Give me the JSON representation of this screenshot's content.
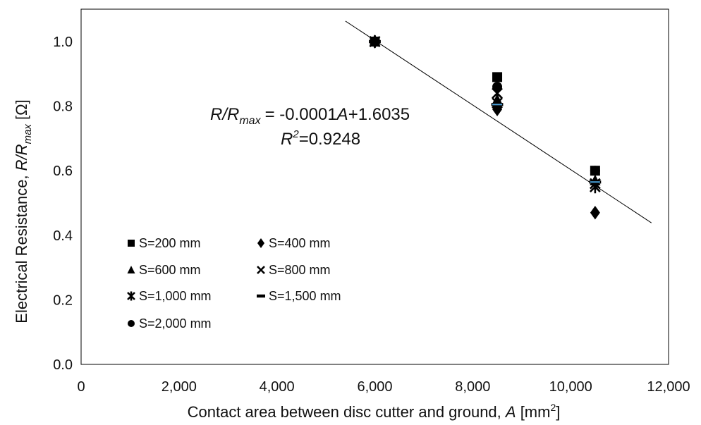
{
  "chart_data": {
    "type": "scatter",
    "xlabel_main": "Contact area between disc cutter and ground, ",
    "xlabel_var": "A",
    "xlabel_unit_open": " [mm",
    "xlabel_unit_sup": "2",
    "xlabel_unit_close": "]",
    "ylabel_main": "Electrical Resistance, ",
    "ylabel_var": "R/R",
    "ylabel_sub": "max",
    "ylabel_unit": " [Ω]",
    "xlim": [
      0,
      12000
    ],
    "ylim": [
      0,
      1.0
    ],
    "x_ticks": [
      {
        "value": 0,
        "label": "0"
      },
      {
        "value": 2000,
        "label": "2,000"
      },
      {
        "value": 4000,
        "label": "4,000"
      },
      {
        "value": 6000,
        "label": "6,000"
      },
      {
        "value": 8000,
        "label": "8,000"
      },
      {
        "value": 10000,
        "label": "10,000"
      },
      {
        "value": 12000,
        "label": "12,000"
      }
    ],
    "y_ticks": [
      {
        "value": 0,
        "label": "0.0"
      },
      {
        "value": 0.2,
        "label": "0.2"
      },
      {
        "value": 0.4,
        "label": "0.4"
      },
      {
        "value": 0.6,
        "label": "0.6"
      },
      {
        "value": 0.8,
        "label": "0.8"
      },
      {
        "value": 1.0,
        "label": "1.0"
      }
    ],
    "grid": false,
    "legend_position": "bottom-left",
    "series": [
      {
        "name": "S=200 mm",
        "marker": "square",
        "x": [
          6000,
          8500,
          10500
        ],
        "y": [
          1.0,
          0.89,
          0.6
        ]
      },
      {
        "name": "S=400 mm",
        "marker": "diamond",
        "x": [
          6000,
          8500,
          10500
        ],
        "y": [
          1.0,
          0.79,
          0.47
        ]
      },
      {
        "name": "S=600 mm",
        "marker": "triangle",
        "x": [
          6000,
          8500,
          10500
        ],
        "y": [
          1.0,
          0.82,
          0.57
        ]
      },
      {
        "name": "S=800 mm",
        "marker": "x",
        "x": [
          6000,
          8500,
          10500
        ],
        "y": [
          1.0,
          0.81,
          0.56
        ]
      },
      {
        "name": "S=1,000 mm",
        "marker": "star",
        "x": [
          6000,
          8500,
          10500
        ],
        "y": [
          1.0,
          0.84,
          0.55
        ]
      },
      {
        "name": "S=1,500 mm",
        "marker": "dash",
        "x": [
          6000,
          8500,
          10500
        ],
        "y": [
          1.0,
          0.805,
          0.565
        ]
      },
      {
        "name": "S=2,000 mm",
        "marker": "circle",
        "x": [
          6000,
          8500,
          10500
        ],
        "y": [
          1.0,
          0.86,
          0.6
        ]
      }
    ],
    "trendline": {
      "x_start": 5400,
      "x_end": 11650,
      "slope": -0.0001,
      "intercept": 1.6035,
      "eq_lhs_var": "R/R",
      "eq_lhs_sub": "max",
      "eq_rhs_a": "= -0.0001",
      "eq_rhs_var": "A",
      "eq_rhs_b": "+1.6035",
      "r2_var": "R",
      "r2_sup": "2",
      "r2_value": "=0.9248"
    },
    "colors": {
      "marker": "#000000",
      "dash_accent": "#4aa0d8",
      "line": "#000000"
    }
  }
}
